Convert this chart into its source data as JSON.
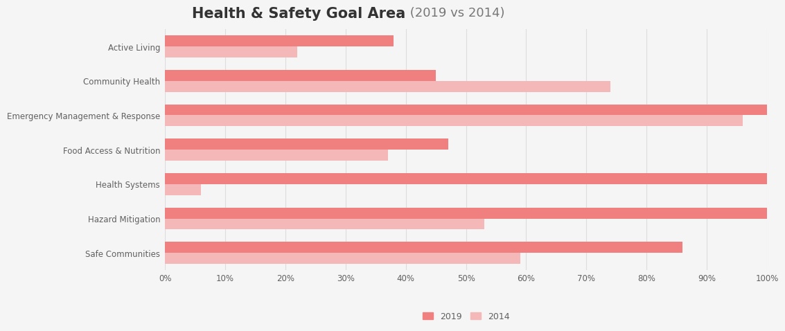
{
  "title_bold": "Health & Safety Goal Area",
  "title_light": " (2019 vs 2014)",
  "categories": [
    "Active Living",
    "Community Health",
    "Emergency Management & Response",
    "Food Access & Nutrition",
    "Health Systems",
    "Hazard Mitigation",
    "Safe Communities"
  ],
  "values_2019": [
    38,
    45,
    100,
    47,
    100,
    100,
    86
  ],
  "values_2014": [
    22,
    74,
    96,
    37,
    6,
    53,
    59
  ],
  "color_2019": "#F08080",
  "color_2014": "#F4B8B8",
  "background_color": "#F5F5F5",
  "label_color_teal": "#5B8FA8",
  "label_color_gray": "#606060",
  "bar_height": 0.32,
  "xlim": [
    0,
    100
  ],
  "xticks": [
    0,
    10,
    20,
    30,
    40,
    50,
    60,
    70,
    80,
    90,
    100
  ],
  "xtick_labels": [
    "0%",
    "10%",
    "20%",
    "30%",
    "40%",
    "50%",
    "60%",
    "70%",
    "80%",
    "90%",
    "100%"
  ],
  "grid_color": "#DDDDDD",
  "legend_labels": [
    "2019",
    "2014"
  ],
  "title_bold_color": "#333333",
  "title_light_color": "#777777",
  "title_bold_size": 15,
  "title_light_size": 13
}
